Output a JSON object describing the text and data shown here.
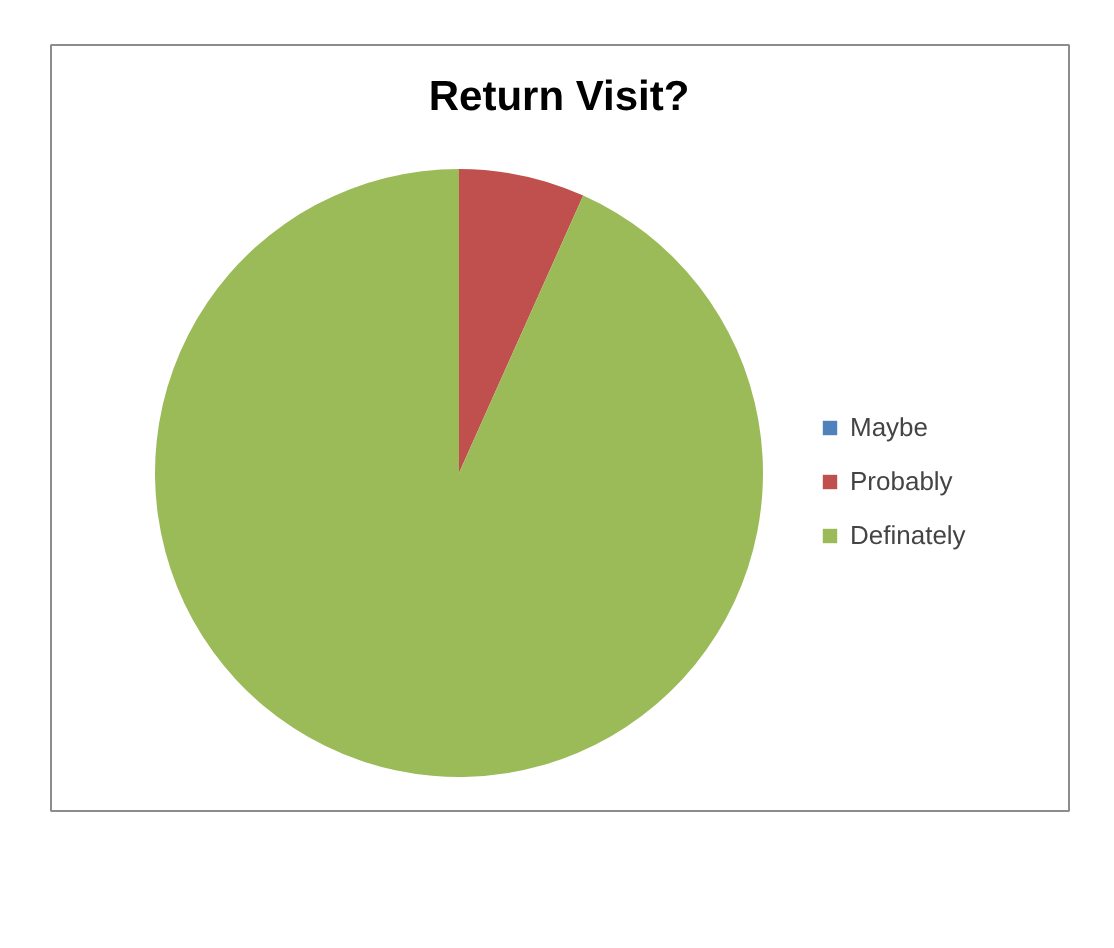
{
  "chart_data": {
    "type": "pie",
    "title": "Return Visit?",
    "categories": [
      "Maybe",
      "Probably",
      "Definately"
    ],
    "values": [
      0,
      6.7,
      93.3
    ],
    "colors": [
      "#4f81bd",
      "#c0504d",
      "#9bbb59"
    ],
    "legend": "right"
  }
}
